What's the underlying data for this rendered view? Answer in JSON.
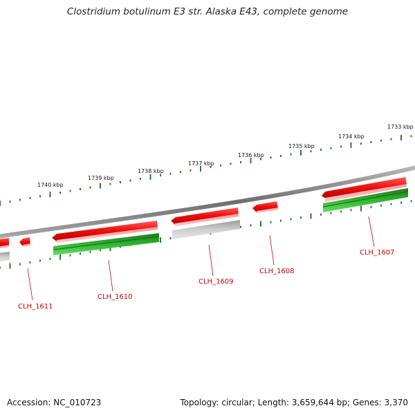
{
  "header": {
    "title": "Clostridium botulinum E3 str. Alaska E43, complete genome"
  },
  "footer": {
    "accession": "Accession: NC_010723",
    "stats": "Topology: circular; Length: 3,659,644 bp; Genes: 3,370"
  },
  "scale": {
    "ticks": [
      "1733 kbp",
      "1734 kbp",
      "1735 kbp",
      "1736 kbp",
      "1737 kbp",
      "1738 kbp",
      "1739 kbp",
      "1740 kbp"
    ]
  },
  "genes": [
    {
      "id": "CLH_1607",
      "label": "CLH_1607"
    },
    {
      "id": "CLH_1608",
      "label": "CLH_1608"
    },
    {
      "id": "CLH_1609",
      "label": "CLH_1609"
    },
    {
      "id": "CLH_1610",
      "label": "CLH_1610"
    },
    {
      "id": "CLH_1611",
      "label": "CLH_1611"
    }
  ],
  "colors": {
    "backbone": "#8a8a8a",
    "gene": "#ee1111",
    "cds_green": "#22aa22",
    "cds_grey": "#bdbdbd",
    "scale_ticks": "#2a7a2a",
    "label": "#cc0000"
  }
}
